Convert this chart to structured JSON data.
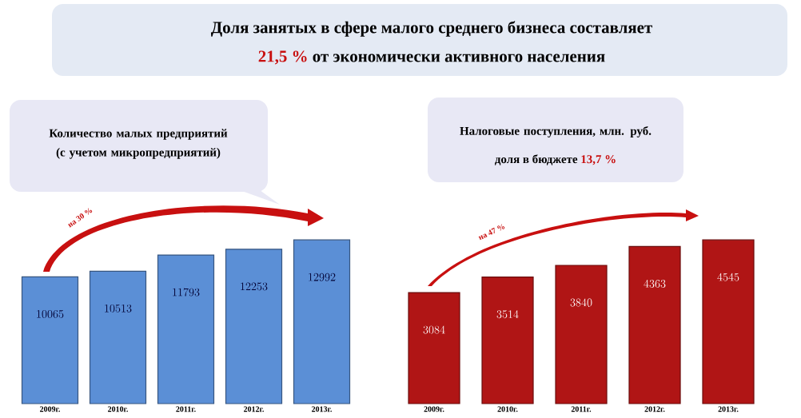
{
  "chart_data": [
    {
      "type": "bar",
      "title": "Количество малых предприятий (с учетом микропредприятий)",
      "categories": [
        "2009г.",
        "2010г.",
        "2011г.",
        "2012г.",
        "2013г."
      ],
      "values": [
        10065,
        10513,
        11793,
        12253,
        12992
      ],
      "color": "#5b8fd6",
      "data_labels": true,
      "annotations": [
        "Доля занятых в сфере малого среднего бизнеса составляет",
        "21,5 %",
        "от экономически активного населения",
        "на 30 %"
      ]
    },
    {
      "type": "bar",
      "title": "Налоговые поступления, млн. руб.",
      "subtitle": "доля в бюджете",
      "categories": [
        "2009г.",
        "2010г.",
        "2011г.",
        "2012г.",
        "2013г."
      ],
      "values": [
        3084,
        3514,
        3840,
        4363,
        4545
      ],
      "color": "#b01515",
      "data_labels": true,
      "annotations": [
        "13,7 %",
        "на 47 %"
      ]
    }
  ]
}
